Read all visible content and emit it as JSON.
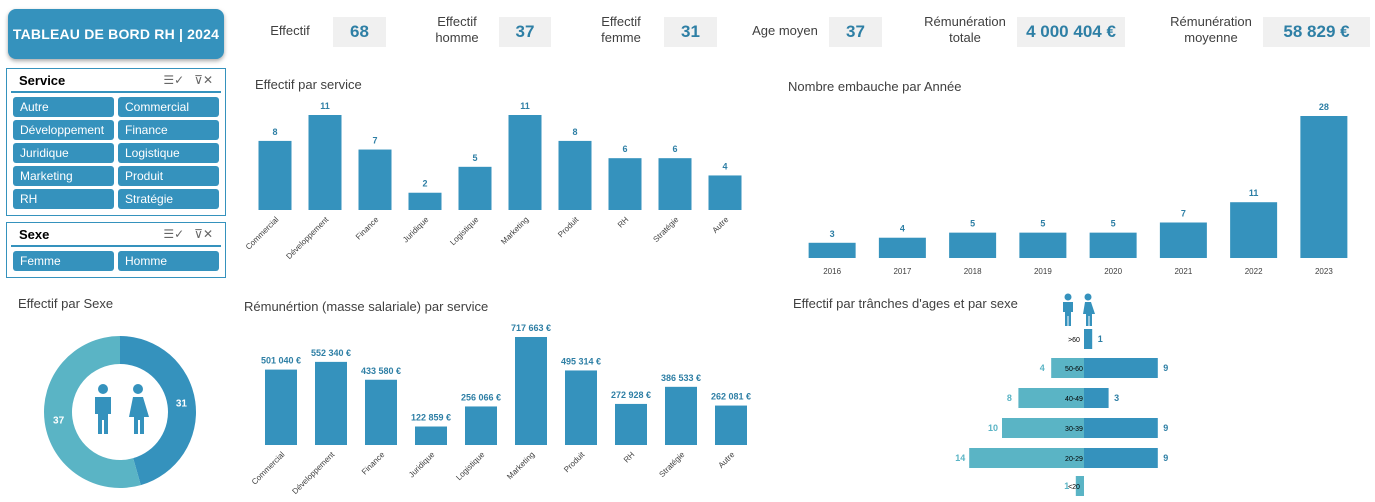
{
  "title": "TABLEAU DE BORD RH  | 2024",
  "colors": {
    "primary": "#3592bd",
    "light": "#5ab4c5",
    "value_text": "#2e7fa5"
  },
  "kpis": [
    {
      "label": "Effectif",
      "value": "68"
    },
    {
      "label": "Effectif\nhomme",
      "value": "37"
    },
    {
      "label": "Effectif\nfemme",
      "value": "31"
    },
    {
      "label": "Age moyen",
      "value": "37"
    },
    {
      "label": "Rémunération\ntotale",
      "value": "4 000 404 €"
    },
    {
      "label": "Rémunération\nmoyenne",
      "value": "58 829 €"
    }
  ],
  "slicers": {
    "service": {
      "title": "Service",
      "icons": [
        "multi-select-icon",
        "clear-filter-icon"
      ],
      "items": [
        "Autre",
        "Commercial",
        "Développement",
        "Finance",
        "Juridique",
        "Logistique",
        "Marketing",
        "Produit",
        "RH",
        "Stratégie"
      ]
    },
    "sexe": {
      "title": "Sexe",
      "icons": [
        "multi-select-icon",
        "clear-filter-icon"
      ],
      "items": [
        "Femme",
        "Homme"
      ]
    }
  },
  "chart_data": [
    {
      "id": "effectif-service",
      "type": "bar",
      "title": "Effectif par service",
      "categories": [
        "Commercial",
        "Développement",
        "Finance",
        "Juridique",
        "Logistique",
        "Marketing",
        "Produit",
        "RH",
        "Stratégie",
        "Autre"
      ],
      "values": [
        8,
        11,
        7,
        2,
        5,
        11,
        8,
        6,
        6,
        4
      ],
      "labels": [
        "8",
        "11",
        "7",
        "2",
        "5",
        "11",
        "8",
        "6",
        "6",
        "4"
      ]
    },
    {
      "id": "embauche-annee",
      "type": "bar",
      "title": "Nombre embauche par Année",
      "categories": [
        "2016",
        "2017",
        "2018",
        "2019",
        "2020",
        "2021",
        "2022",
        "2023"
      ],
      "values": [
        3,
        4,
        5,
        5,
        5,
        7,
        11,
        28
      ],
      "labels": [
        "3",
        "4",
        "5",
        "5",
        "5",
        "7",
        "11",
        "28"
      ]
    },
    {
      "id": "effectif-sexe",
      "type": "pie",
      "title": "Effectif par Sexe",
      "categories": [
        "Femme",
        "Homme"
      ],
      "values": [
        31,
        37
      ],
      "colors": [
        "#3592bd",
        "#5ab4c5"
      ]
    },
    {
      "id": "remuneration-service",
      "type": "bar",
      "title": "Rémunértion (masse salariale) par service",
      "categories": [
        "Commercial",
        "Développement",
        "Finance",
        "Juridique",
        "Logistique",
        "Marketing",
        "Produit",
        "RH",
        "Stratégie",
        "Autre"
      ],
      "values": [
        501040,
        552340,
        433580,
        122859,
        256066,
        717663,
        495314,
        272928,
        386533,
        262081
      ],
      "labels": [
        "501 040 €",
        "552 340 €",
        "433 580 €",
        "122 859 €",
        "256 066 €",
        "717 663 €",
        "495 314 €",
        "272 928 €",
        "386 533 €",
        "262 081 €"
      ]
    },
    {
      "id": "tranches-ages",
      "type": "bar",
      "title": "Effectif par trânches d'ages et par sexe",
      "categories": [
        ">60",
        "50-60",
        "40-49",
        "30-39",
        "20-29",
        "<20"
      ],
      "series": [
        {
          "values": [
            0,
            4,
            8,
            10,
            14,
            1
          ]
        },
        {
          "values": [
            1,
            9,
            3,
            9,
            9,
            0
          ]
        }
      ],
      "left_labels": [
        "",
        "4",
        "8",
        "10",
        "14",
        "1"
      ],
      "right_labels": [
        "1",
        "9",
        "3",
        "9",
        "9",
        ""
      ],
      "legend_icons": [
        "male-icon",
        "female-icon"
      ]
    }
  ]
}
